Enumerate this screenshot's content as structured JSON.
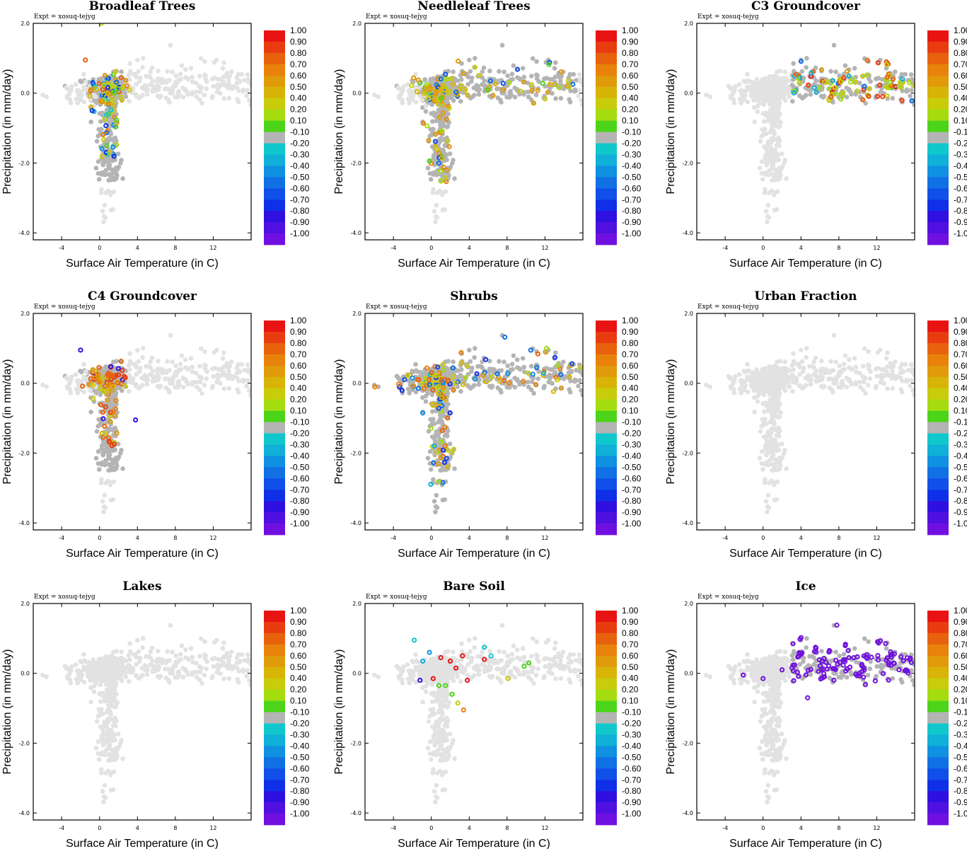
{
  "figure": {
    "experiment_label": "Expt = xosuq-tejyg"
  },
  "colorbar": {
    "labels": [
      "1.00",
      "0.90",
      "0.80",
      "0.70",
      "0.60",
      "0.50",
      "0.40",
      "0.20",
      "0.10",
      "-0.10",
      "-0.20",
      "-0.30",
      "-0.40",
      "-0.50",
      "-0.60",
      "-0.70",
      "-0.80",
      "-0.90",
      "-1.00"
    ],
    "colors": [
      "#e81313",
      "#e83c10",
      "#e8620d",
      "#e8820b",
      "#e09a0a",
      "#d8b409",
      "#c8cc0a",
      "#a4dc10",
      "#4cd41a",
      "#b4b4b4",
      "#10c8cc",
      "#10b0d8",
      "#1090e0",
      "#1070e4",
      "#1050e8",
      "#1030e8",
      "#3010e0",
      "#5010e0",
      "#7010e0"
    ]
  },
  "chart_data": [
    {
      "type": "scatter",
      "title": "Broadleaf Trees",
      "xlabel": "Surface Air Temperature (in C)",
      "ylabel": "Precipitation (in mm/day)",
      "xlim": [
        -7,
        16
      ],
      "ylim": [
        -4.2,
        2.0
      ],
      "xticks": [
        "-4",
        "0",
        "4",
        "8",
        "12"
      ],
      "yticks": [
        "2.0",
        "0.0",
        "-2.0",
        "-4.0"
      ],
      "highlight": {
        "region": "core",
        "values": [
          0.1,
          0.2,
          0.4,
          0.5,
          0.6,
          0.3,
          -0.2,
          -0.4,
          -0.7,
          0.7,
          0.2,
          0.4,
          -0.3,
          0.5,
          -0.5,
          0.3,
          0.1,
          0.8
        ],
        "extra_points": [
          {
            "x": -1.5,
            "y": 0.95,
            "v": 0.8
          },
          {
            "x": 0.2,
            "y": 2.0,
            "v": 0.2
          }
        ]
      }
    },
    {
      "type": "scatter",
      "title": "Needleleaf Trees",
      "xlabel": "Surface Air Temperature (in C)",
      "ylabel": "Precipitation (in mm/day)",
      "xlim": [
        -7,
        16
      ],
      "ylim": [
        -4.2,
        2.0
      ],
      "xticks": [
        "-4",
        "0",
        "4",
        "8",
        "12"
      ],
      "yticks": [
        "2.0",
        "0.0",
        "-2.0",
        "-4.0"
      ],
      "highlight": {
        "region": "core+warm",
        "values": [
          0.5,
          0.6,
          0.4,
          0.7,
          0.2,
          0.6,
          -0.5,
          0.3,
          0.4,
          0.6,
          0.5,
          0.2,
          -0.6,
          0.4,
          0.1,
          0.6,
          0.7,
          0.5
        ]
      }
    },
    {
      "type": "scatter",
      "title": "C3 Groundcover",
      "xlabel": "Surface Air Temperature (in C)",
      "ylabel": "Precipitation (in mm/day)",
      "xlim": [
        -7,
        16
      ],
      "ylim": [
        -4.2,
        2.0
      ],
      "xticks": [
        "-4",
        "0",
        "4",
        "8",
        "12"
      ],
      "yticks": [
        "2.0",
        "0.0",
        "-2.0",
        "-4.0"
      ],
      "highlight": {
        "region": "warm",
        "values": [
          0.8,
          0.9,
          0.3,
          0.2,
          0.5,
          0.9,
          0.1,
          0.4,
          0.8,
          0.2,
          -0.5,
          0.6,
          0.9,
          0.2,
          0.4,
          1.0,
          -0.3,
          0.2
        ]
      }
    },
    {
      "type": "scatter",
      "title": "C4 Groundcover",
      "xlabel": "Surface Air Temperature (in C)",
      "ylabel": "Precipitation (in mm/day)",
      "xlim": [
        -7,
        16
      ],
      "ylim": [
        -4.2,
        2.0
      ],
      "xticks": [
        "-4",
        "0",
        "4",
        "8",
        "12"
      ],
      "yticks": [
        "2.0",
        "0.0",
        "-2.0",
        "-4.0"
      ],
      "highlight": {
        "region": "core",
        "values": [
          0.8,
          0.7,
          0.9,
          0.6,
          0.8,
          0.5,
          0.9,
          0.7,
          0.3,
          0.8,
          0.6,
          -0.8,
          0.9,
          0.7,
          0.4,
          0.8,
          0.6,
          0.9
        ],
        "extra_points": [
          {
            "x": -2.0,
            "y": 0.95,
            "v": -0.8
          },
          {
            "x": 3.8,
            "y": -1.05,
            "v": -0.8
          }
        ]
      }
    },
    {
      "type": "scatter",
      "title": "Shrubs",
      "xlabel": "Surface Air Temperature (in C)",
      "ylabel": "Precipitation (in mm/day)",
      "xlim": [
        -7,
        16
      ],
      "ylim": [
        -4.2,
        2.0
      ],
      "xticks": [
        "-4",
        "0",
        "4",
        "8",
        "12"
      ],
      "yticks": [
        "2.0",
        "0.0",
        "-2.0",
        "-4.0"
      ],
      "highlight": {
        "region": "all",
        "values": [
          0.5,
          -0.4,
          0.7,
          0.3,
          -0.6,
          0.6,
          0.8,
          0.2,
          -0.3,
          0.7,
          0.5,
          0.4,
          -0.5,
          0.8,
          0.6,
          0.3,
          0.7,
          -0.7
        ]
      }
    },
    {
      "type": "scatter",
      "title": "Urban Fraction",
      "xlabel": "Surface Air Temperature (in C)",
      "ylabel": "Precipitation (in mm/day)",
      "xlim": [
        -7,
        16
      ],
      "ylim": [
        -4.2,
        2.0
      ],
      "xticks": [
        "-4",
        "0",
        "4",
        "8",
        "12"
      ],
      "yticks": [
        "2.0",
        "0.0",
        "-2.0",
        "-4.0"
      ],
      "highlight": null
    },
    {
      "type": "scatter",
      "title": "Lakes",
      "xlabel": "Surface Air Temperature (in C)",
      "ylabel": "Precipitation (in mm/day)",
      "xlim": [
        -7,
        16
      ],
      "ylim": [
        -4.2,
        2.0
      ],
      "xticks": [
        "-4",
        "0",
        "4",
        "8",
        "12"
      ],
      "yticks": [
        "2.0",
        "0.0",
        "-2.0",
        "-4.0"
      ],
      "highlight": null
    },
    {
      "type": "scatter",
      "title": "Bare Soil",
      "xlabel": "Surface Air Temperature (in C)",
      "ylabel": "Precipitation (in mm/day)",
      "xlim": [
        -7,
        16
      ],
      "ylim": [
        -4.2,
        2.0
      ],
      "xticks": [
        "-4",
        "0",
        "4",
        "8",
        "12"
      ],
      "yticks": [
        "2.0",
        "0.0",
        "-2.0",
        "-4.0"
      ],
      "highlight": {
        "region": "none",
        "values": [],
        "extra_points": [
          {
            "x": -1.8,
            "y": 0.95,
            "v": -0.2
          },
          {
            "x": 1.0,
            "y": 0.45,
            "v": 1.0
          },
          {
            "x": 2.0,
            "y": 0.35,
            "v": 1.0
          },
          {
            "x": 3.3,
            "y": 0.5,
            "v": 1.0
          },
          {
            "x": 0.2,
            "y": -0.15,
            "v": 1.0
          },
          {
            "x": 2.6,
            "y": 0.15,
            "v": 1.0
          },
          {
            "x": 5.6,
            "y": 0.4,
            "v": 1.0
          },
          {
            "x": 3.8,
            "y": -0.2,
            "v": 1.0
          },
          {
            "x": -1.2,
            "y": -0.2,
            "v": -0.8
          },
          {
            "x": 1.5,
            "y": -0.35,
            "v": 0.1
          },
          {
            "x": 0.8,
            "y": -0.35,
            "v": 0.1
          },
          {
            "x": 2.8,
            "y": -0.85,
            "v": 0.3
          },
          {
            "x": 3.4,
            "y": -1.05,
            "v": 0.7
          },
          {
            "x": 2.2,
            "y": -0.6,
            "v": 0.1
          },
          {
            "x": 9.8,
            "y": 0.2,
            "v": 0.1
          },
          {
            "x": 10.3,
            "y": 0.3,
            "v": 0.1
          },
          {
            "x": 8.1,
            "y": -0.15,
            "v": 0.3
          },
          {
            "x": 5.6,
            "y": 0.75,
            "v": -0.2
          },
          {
            "x": 6.3,
            "y": 0.5,
            "v": -0.2
          },
          {
            "x": -0.9,
            "y": 0.35,
            "v": -0.3
          },
          {
            "x": -0.2,
            "y": 0.6,
            "v": -0.4
          }
        ]
      }
    },
    {
      "type": "scatter",
      "title": "Ice",
      "xlabel": "Surface Air Temperature (in C)",
      "ylabel": "Precipitation (in mm/day)",
      "xlim": [
        -7,
        16
      ],
      "ylim": [
        -4.2,
        2.0
      ],
      "xticks": [
        "-4",
        "0",
        "4",
        "8",
        "12"
      ],
      "yticks": [
        "2.0",
        "0.0",
        "-2.0",
        "-4.0"
      ],
      "highlight": {
        "region": "warm-all",
        "values": [
          -1.0
        ],
        "extra_points": [
          {
            "x": 0.0,
            "y": -0.15,
            "v": -1.0
          },
          {
            "x": 2.0,
            "y": 0.1,
            "v": -1.0
          },
          {
            "x": -2.1,
            "y": -0.05,
            "v": -1.0
          },
          {
            "x": 4.7,
            "y": -0.7,
            "v": -1.0
          }
        ]
      }
    }
  ]
}
